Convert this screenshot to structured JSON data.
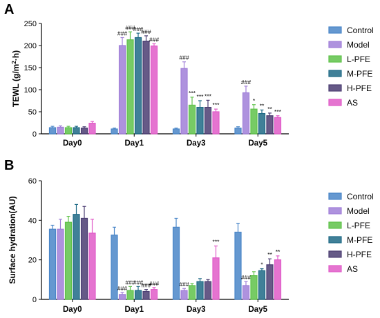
{
  "chart_data": [
    {
      "panel": "A",
      "type": "bar",
      "ylabel_main": "TEWL (g/m",
      "ylabel_sup": "2",
      "ylabel_end": "·h)",
      "ylim": [
        0,
        250
      ],
      "yticks": [
        "0",
        "50",
        "100",
        "150",
        "200",
        "250"
      ],
      "categories": [
        "Day0",
        "Day1",
        "Day3",
        "Day5"
      ],
      "legend_position": "right",
      "series": [
        {
          "name": "Control",
          "color": "#4a86c8",
          "values": [
            14,
            11,
            11,
            13
          ],
          "errors": [
            3,
            2,
            2,
            3
          ],
          "sig": [
            "",
            "",
            "",
            ""
          ]
        },
        {
          "name": "Model",
          "color": "#a07fd8",
          "values": [
            15,
            200,
            148,
            93
          ],
          "errors": [
            3,
            18,
            15,
            15
          ],
          "sig": [
            "",
            "###",
            "###",
            "###"
          ]
        },
        {
          "name": "L-PFE",
          "color": "#5fc24a",
          "values": [
            14,
            213,
            65,
            56
          ],
          "errors": [
            3,
            18,
            18,
            10
          ],
          "sig": [
            "",
            "###",
            "***",
            "*"
          ]
        },
        {
          "name": "M-PFE",
          "color": "#1e6a86",
          "values": [
            14,
            218,
            60,
            46
          ],
          "errors": [
            3,
            10,
            15,
            8
          ],
          "sig": [
            "",
            "###",
            "***",
            "**"
          ]
        },
        {
          "name": "H-PFE",
          "color": "#4b3d72",
          "values": [
            13,
            210,
            60,
            41
          ],
          "errors": [
            3,
            12,
            16,
            6
          ],
          "sig": [
            "",
            "###",
            "***",
            "**"
          ]
        },
        {
          "name": "AS",
          "color": "#e05cc8",
          "values": [
            24,
            199,
            50,
            37
          ],
          "errors": [
            4,
            5,
            6,
            4
          ],
          "sig": [
            "",
            "###",
            "***",
            "***"
          ]
        }
      ]
    },
    {
      "panel": "B",
      "type": "bar",
      "ylabel_main": "Surface hydration(AU)",
      "ylim": [
        0,
        60
      ],
      "yticks": [
        "0",
        "20",
        "40",
        "60"
      ],
      "categories": [
        "Day0",
        "Day1",
        "Day3",
        "Day5"
      ],
      "legend_position": "right",
      "series": [
        {
          "name": "Control",
          "color": "#4a86c8",
          "values": [
            35.5,
            32.5,
            36.5,
            34
          ],
          "errors": [
            2,
            4,
            4.5,
            4.5
          ],
          "sig": [
            "",
            "",
            "",
            ""
          ]
        },
        {
          "name": "Model",
          "color": "#a07fd8",
          "values": [
            35.5,
            2.5,
            4.5,
            7
          ],
          "errors": [
            5,
            1,
            1,
            2
          ],
          "sig": [
            "",
            "###",
            "###",
            "###"
          ]
        },
        {
          "name": "L-PFE",
          "color": "#5fc24a",
          "values": [
            39,
            4.5,
            7,
            12
          ],
          "errors": [
            3,
            2,
            1,
            2
          ],
          "sig": [
            "",
            "###",
            "",
            ""
          ]
        },
        {
          "name": "M-PFE",
          "color": "#1e6a86",
          "values": [
            43,
            4.5,
            9,
            14.5
          ],
          "errors": [
            5,
            2,
            1.5,
            1
          ],
          "sig": [
            "",
            "###",
            "",
            "*"
          ]
        },
        {
          "name": "H-PFE",
          "color": "#4b3d72",
          "values": [
            41,
            4,
            9,
            17.5
          ],
          "errors": [
            6,
            1,
            1,
            3
          ],
          "sig": [
            "",
            "###",
            "",
            "**"
          ]
        },
        {
          "name": "AS",
          "color": "#e05cc8",
          "values": [
            33.5,
            5,
            21,
            20
          ],
          "errors": [
            7,
            1,
            6,
            2
          ],
          "sig": [
            "",
            "###",
            "***",
            "**"
          ]
        }
      ]
    }
  ]
}
